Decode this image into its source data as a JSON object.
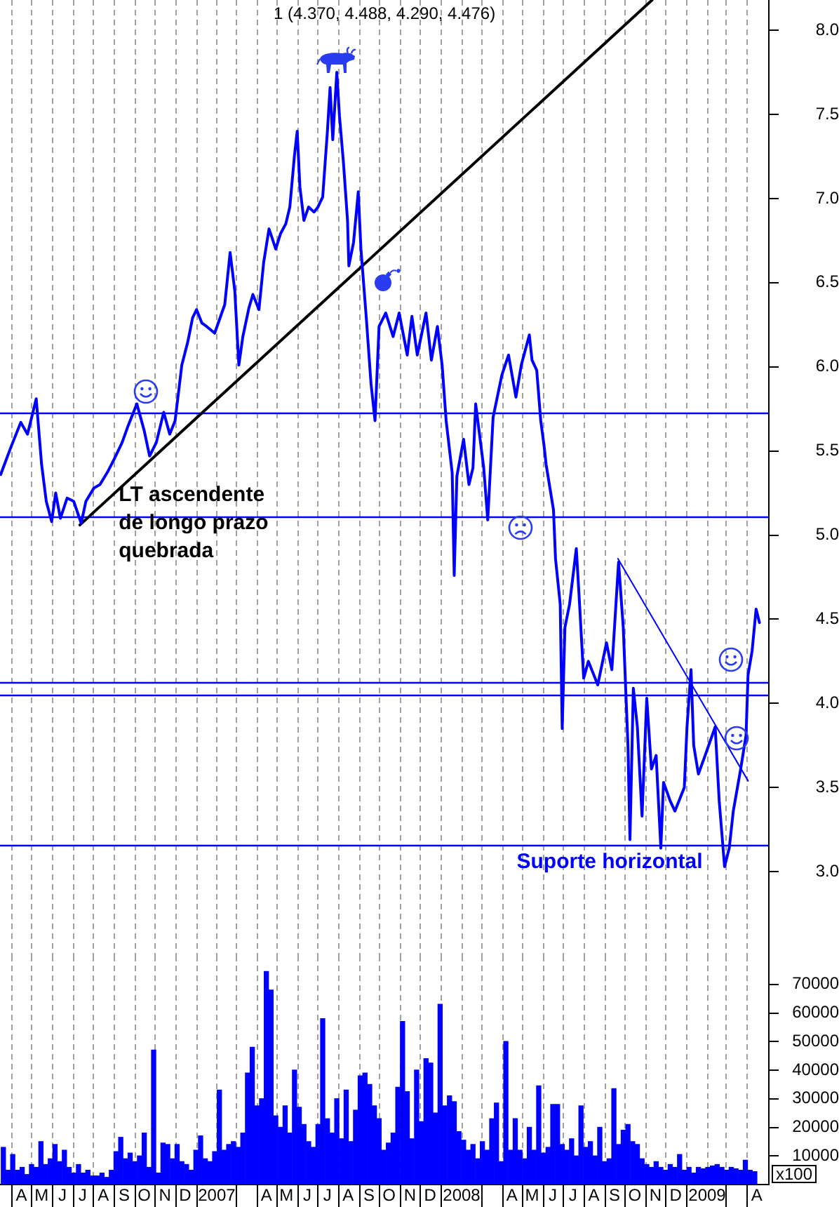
{
  "chart_data": [
    {
      "type": "line",
      "title": "1 (4.370, 4.488, 4.290, 4.476)",
      "series": [
        {
          "color": "#0000ff",
          "x": [
            "2006-03-16",
            "2006-03-31",
            "2006-04-15",
            "2006-04-25",
            "2006-05-08",
            "2006-05-16",
            "2006-05-23",
            "2006-05-31",
            "2006-06-06",
            "2006-06-13",
            "2006-06-23",
            "2006-07-03",
            "2006-07-14",
            "2006-07-21",
            "2006-08-02",
            "2006-08-11",
            "2006-08-23",
            "2006-09-01",
            "2006-09-13",
            "2006-09-22",
            "2006-10-05",
            "2006-10-16",
            "2006-10-24",
            "2006-11-03",
            "2006-11-14",
            "2006-11-23",
            "2006-12-01",
            "2006-12-11",
            "2006-12-20",
            "2006-12-27",
            "2007-01-02",
            "2007-01-10",
            "2007-01-17",
            "2007-01-29",
            "2007-02-13",
            "2007-02-21",
            "2007-02-28",
            "2007-03-06",
            "2007-03-12",
            "2007-03-21",
            "2007-03-27",
            "2007-04-05",
            "2007-04-12",
            "2007-04-20",
            "2007-04-30",
            "2007-05-07",
            "2007-05-15",
            "2007-05-21",
            "2007-05-28",
            "2007-06-01",
            "2007-06-05",
            "2007-06-11",
            "2007-06-18",
            "2007-06-26",
            "2007-07-02",
            "2007-07-09",
            "2007-07-16",
            "2007-07-20",
            "2007-07-24",
            "2007-07-30",
            "2007-08-03",
            "2007-08-09",
            "2007-08-15",
            "2007-08-17",
            "2007-08-24",
            "2007-08-31",
            "2007-09-04",
            "2007-09-12",
            "2007-09-19",
            "2007-09-25",
            "2007-10-01",
            "2007-10-11",
            "2007-10-22",
            "2007-10-31",
            "2007-11-12",
            "2007-11-19",
            "2007-11-27",
            "2007-12-10",
            "2007-12-18",
            "2007-12-27",
            "2008-01-03",
            "2008-01-09",
            "2008-01-18",
            "2008-01-21",
            "2008-01-25",
            "2008-02-04",
            "2008-02-12",
            "2008-02-18",
            "2008-02-22",
            "2008-03-05",
            "2008-03-11",
            "2008-03-19",
            "2008-04-01",
            "2008-04-11",
            "2008-04-22",
            "2008-04-30",
            "2008-05-12",
            "2008-05-16",
            "2008-05-23",
            "2008-05-29",
            "2008-06-03",
            "2008-06-06",
            "2008-06-17",
            "2008-06-20",
            "2008-06-27",
            "2008-06-30",
            "2008-07-04",
            "2008-07-11",
            "2008-07-21",
            "2008-07-25",
            "2008-08-01",
            "2008-08-08",
            "2008-08-22",
            "2008-09-04",
            "2008-09-12",
            "2008-09-22",
            "2008-09-29",
            "2008-10-06",
            "2008-10-09",
            "2008-10-14",
            "2008-10-20",
            "2008-10-27",
            "2008-11-03",
            "2008-11-10",
            "2008-11-17",
            "2008-11-24",
            "2008-11-28",
            "2008-12-08",
            "2008-12-15",
            "2008-12-29",
            "2009-01-02",
            "2009-01-08",
            "2009-01-12",
            "2009-01-19",
            "2009-01-29",
            "2009-02-13",
            "2009-02-19",
            "2009-02-27",
            "2009-03-06",
            "2009-03-12",
            "2009-03-23",
            "2009-03-31",
            "2009-04-03",
            "2009-04-09",
            "2009-04-15",
            "2009-04-20"
          ],
          "values": [
            5.36,
            5.52,
            5.67,
            5.6,
            5.81,
            5.42,
            5.2,
            5.08,
            5.25,
            5.1,
            5.22,
            5.2,
            5.07,
            5.2,
            5.28,
            5.3,
            5.38,
            5.45,
            5.55,
            5.65,
            5.78,
            5.62,
            5.47,
            5.55,
            5.73,
            5.6,
            5.68,
            6.01,
            6.15,
            6.29,
            6.34,
            6.26,
            6.24,
            6.2,
            6.37,
            6.68,
            6.45,
            6.01,
            6.18,
            6.35,
            6.43,
            6.34,
            6.62,
            6.82,
            6.7,
            6.79,
            6.85,
            6.95,
            7.26,
            7.4,
            7.07,
            6.87,
            6.95,
            6.92,
            6.95,
            7.01,
            7.4,
            7.66,
            7.35,
            7.75,
            7.49,
            7.21,
            6.87,
            6.6,
            6.74,
            7.04,
            6.7,
            6.29,
            5.9,
            5.68,
            6.24,
            6.32,
            6.18,
            6.32,
            6.07,
            6.3,
            6.07,
            6.32,
            6.04,
            6.24,
            6.01,
            5.68,
            5.37,
            4.76,
            5.35,
            5.57,
            5.3,
            5.4,
            5.78,
            5.4,
            5.09,
            5.7,
            5.95,
            6.07,
            5.82,
            6.01,
            6.19,
            6.04,
            5.98,
            5.68,
            5.53,
            5.42,
            5.15,
            4.86,
            4.59,
            3.85,
            4.45,
            4.59,
            4.92,
            4.65,
            4.15,
            4.25,
            4.11,
            4.36,
            4.2,
            4.84,
            4.45,
            3.75,
            3.19,
            4.09,
            3.86,
            3.33,
            4.03,
            3.61,
            3.69,
            3.14,
            3.53,
            3.42,
            3.36,
            3.5,
            3.86,
            4.2,
            3.75,
            3.58,
            3.69,
            3.86,
            3.42,
            3.03,
            3.14,
            3.36,
            3.61,
            3.81,
            4.17,
            4.31,
            4.56,
            4.48
          ]
        },
        {
          "type": "line",
          "color": "#000000",
          "x": [
            "2006-07-12",
            "2008-11-11"
          ],
          "values": [
            5.06,
            8.18
          ]
        },
        {
          "type": "line",
          "color": "#0000ff",
          "x": [
            "2008-09-21",
            "2009-04-03"
          ],
          "values": [
            4.86,
            3.54
          ]
        }
      ],
      "xlim": [
        "2006-03-15",
        "2009-05-04"
      ],
      "xticks": [
        {
          "value": "2006-04-01",
          "label": null
        },
        {
          "value": "2006-05-01",
          "label": null
        },
        {
          "value": "2006-06-01",
          "label": null
        },
        {
          "value": "2006-07-01",
          "label": null
        },
        {
          "value": "2006-08-01",
          "label": null
        },
        {
          "value": "2006-09-01",
          "label": null
        },
        {
          "value": "2006-10-01",
          "label": null
        },
        {
          "value": "2006-11-01",
          "label": null
        },
        {
          "value": "2006-12-01",
          "label": null
        },
        {
          "value": "2007-01-01",
          "label": null
        },
        {
          "value": "2007-02-01",
          "label": null
        },
        {
          "value": "2007-03-01",
          "label": null
        },
        {
          "value": "2007-04-01",
          "label": null
        },
        {
          "value": "2007-05-01",
          "label": null
        },
        {
          "value": "2007-06-01",
          "label": null
        },
        {
          "value": "2007-07-01",
          "label": null
        },
        {
          "value": "2007-08-01",
          "label": null
        },
        {
          "value": "2007-09-01",
          "label": null
        },
        {
          "value": "2007-10-01",
          "label": null
        },
        {
          "value": "2007-11-01",
          "label": null
        },
        {
          "value": "2007-12-01",
          "label": null
        },
        {
          "value": "2008-01-01",
          "label": null
        },
        {
          "value": "2008-02-01",
          "label": null
        },
        {
          "value": "2008-03-01",
          "label": null
        },
        {
          "value": "2008-04-01",
          "label": null
        },
        {
          "value": "2008-05-01",
          "label": null
        },
        {
          "value": "2008-06-01",
          "label": null
        },
        {
          "value": "2008-07-01",
          "label": null
        },
        {
          "value": "2008-08-01",
          "label": null
        },
        {
          "value": "2008-09-01",
          "label": null
        },
        {
          "value": "2008-10-01",
          "label": null
        },
        {
          "value": "2008-11-01",
          "label": null
        },
        {
          "value": "2008-12-01",
          "label": null
        },
        {
          "value": "2009-01-01",
          "label": null
        },
        {
          "value": "2009-02-01",
          "label": null
        },
        {
          "value": "2009-03-01",
          "label": null
        },
        {
          "value": "2009-04-01",
          "label": null
        }
      ],
      "ylim": [
        2.5,
        8.18
      ],
      "yticks": [
        {
          "value": 3,
          "label": "3.0"
        },
        {
          "value": 3.5,
          "label": "3.5"
        },
        {
          "value": 4,
          "label": "4.0"
        },
        {
          "value": 4.5,
          "label": "4.5"
        },
        {
          "value": 5,
          "label": "5.0"
        },
        {
          "value": 5.5,
          "label": "5.5"
        },
        {
          "value": 6,
          "label": "6.0"
        },
        {
          "value": 6.5,
          "label": "6.5"
        },
        {
          "value": 7,
          "label": "7.0"
        },
        {
          "value": 7.5,
          "label": "7.5"
        },
        {
          "value": 8,
          "label": "8.0"
        }
      ],
      "ref_lines": [
        {
          "axis": "y",
          "value": 5.73,
          "color": "#0000ff"
        },
        {
          "axis": "y",
          "value": 5.11,
          "color": "#0000ff"
        },
        {
          "axis": "y",
          "value": 4.13,
          "color": "#0000ff"
        },
        {
          "axis": "y",
          "value": 4.05,
          "color": "#0000ff"
        },
        {
          "axis": "y",
          "value": 3.16,
          "label": "Suporte horizontal",
          "color": "#0000ff"
        }
      ],
      "annotations": [
        {
          "text": "LT ascendente de longo prazo quebrada",
          "x": "2006-09-08",
          "y": 5.3
        }
      ],
      "grid": "x",
      "legend": false,
      "marker": "none",
      "tick_labels": "y"
    },
    {
      "type": "bar",
      "color": "#0000ff",
      "ylabel": "x100",
      "x": [
        "2006-03-20",
        "2006-03-27",
        "2006-04-03",
        "2006-04-10",
        "2006-04-17",
        "2006-04-24",
        "2006-05-01",
        "2006-05-08",
        "2006-05-15",
        "2006-05-22",
        "2006-05-29",
        "2006-06-05",
        "2006-06-12",
        "2006-06-19",
        "2006-06-26",
        "2006-07-03",
        "2006-07-10",
        "2006-07-17",
        "2006-07-24",
        "2006-07-31",
        "2006-08-07",
        "2006-08-14",
        "2006-08-21",
        "2006-08-28",
        "2006-09-04",
        "2006-09-11",
        "2006-09-18",
        "2006-09-25",
        "2006-10-02",
        "2006-10-09",
        "2006-10-16",
        "2006-10-23",
        "2006-10-30",
        "2006-11-06",
        "2006-11-13",
        "2006-11-20",
        "2006-11-27",
        "2006-12-04",
        "2006-12-11",
        "2006-12-18",
        "2006-12-25",
        "2007-01-01",
        "2007-01-08",
        "2007-01-15",
        "2007-01-22",
        "2007-01-29",
        "2007-02-05",
        "2007-02-12",
        "2007-02-19",
        "2007-02-26",
        "2007-03-05",
        "2007-03-12",
        "2007-03-19",
        "2007-03-26",
        "2007-04-02",
        "2007-04-09",
        "2007-04-16",
        "2007-04-23",
        "2007-04-30",
        "2007-05-07",
        "2007-05-14",
        "2007-05-21",
        "2007-05-28",
        "2007-06-04",
        "2007-06-11",
        "2007-06-18",
        "2007-06-25",
        "2007-07-02",
        "2007-07-09",
        "2007-07-16",
        "2007-07-23",
        "2007-07-30",
        "2007-08-06",
        "2007-08-13",
        "2007-08-20",
        "2007-08-27",
        "2007-09-03",
        "2007-09-10",
        "2007-09-17",
        "2007-09-24",
        "2007-10-01",
        "2007-10-08",
        "2007-10-15",
        "2007-10-22",
        "2007-10-29",
        "2007-11-05",
        "2007-11-12",
        "2007-11-19",
        "2007-11-26",
        "2007-12-03",
        "2007-12-10",
        "2007-12-17",
        "2007-12-24",
        "2007-12-31",
        "2008-01-07",
        "2008-01-14",
        "2008-01-21",
        "2008-01-28",
        "2008-02-04",
        "2008-02-11",
        "2008-02-18",
        "2008-02-25",
        "2008-03-03",
        "2008-03-10",
        "2008-03-17",
        "2008-03-24",
        "2008-03-31",
        "2008-04-07",
        "2008-04-14",
        "2008-04-21",
        "2008-04-28",
        "2008-05-05",
        "2008-05-12",
        "2008-05-19",
        "2008-05-26",
        "2008-06-02",
        "2008-06-09",
        "2008-06-16",
        "2008-06-23",
        "2008-06-30",
        "2008-07-07",
        "2008-07-14",
        "2008-07-21",
        "2008-07-28",
        "2008-08-04",
        "2008-08-11",
        "2008-08-18",
        "2008-08-25",
        "2008-09-01",
        "2008-09-08",
        "2008-09-15",
        "2008-09-22",
        "2008-09-29",
        "2008-10-06",
        "2008-10-13",
        "2008-10-20",
        "2008-10-27",
        "2008-11-03",
        "2008-11-10",
        "2008-11-17",
        "2008-11-24",
        "2008-12-01",
        "2008-12-08",
        "2008-12-15",
        "2008-12-22",
        "2008-12-29",
        "2009-01-05",
        "2009-01-12",
        "2009-01-19",
        "2009-01-26",
        "2009-02-02",
        "2009-02-09",
        "2009-02-16",
        "2009-02-23",
        "2009-03-02",
        "2009-03-09",
        "2009-03-16",
        "2009-03-23",
        "2009-03-30",
        "2009-04-06",
        "2009-04-13"
      ],
      "values": [
        13000,
        5000,
        10500,
        5000,
        6000,
        3500,
        7000,
        6000,
        15000,
        7000,
        9000,
        14000,
        8000,
        12000,
        6000,
        4000,
        7000,
        4000,
        5000,
        3000,
        3000,
        4000,
        2500,
        5000,
        11500,
        16500,
        9000,
        11000,
        8000,
        10000,
        18000,
        6000,
        47000,
        4000,
        14500,
        14000,
        9000,
        14000,
        8000,
        7000,
        5000,
        12000,
        17000,
        9000,
        8000,
        11500,
        33000,
        12000,
        14000,
        15000,
        13000,
        18000,
        39000,
        48000,
        27500,
        30000,
        74500,
        68000,
        24000,
        20000,
        27500,
        18000,
        40000,
        27000,
        21000,
        15000,
        13000,
        21000,
        58000,
        23000,
        18000,
        30000,
        16000,
        33000,
        15000,
        26000,
        38000,
        39000,
        35000,
        27500,
        23000,
        12000,
        14500,
        18000,
        34000,
        57000,
        32500,
        16000,
        40000,
        22000,
        44000,
        42500,
        25000,
        63000,
        27500,
        31000,
        29000,
        18500,
        15500,
        12000,
        14000,
        9000,
        15000,
        12000,
        23000,
        28500,
        8000,
        50000,
        12000,
        23000,
        12000,
        9000,
        20000,
        12000,
        34500,
        11000,
        13000,
        28000,
        28000,
        14000,
        12000,
        16000,
        10000,
        27500,
        13000,
        15000,
        10000,
        20000,
        8000,
        9000,
        33500,
        14000,
        19000,
        21000,
        15000,
        14000,
        9000,
        7000,
        6000,
        8000,
        6000,
        5000,
        7000,
        6000,
        10500,
        5000,
        6000,
        4000,
        6000,
        5500,
        6000,
        6500,
        7000,
        6000,
        5000,
        6000,
        5500,
        5000,
        8500,
        5000,
        4500
      ],
      "xlim": [
        "2006-03-15",
        "2009-05-04"
      ],
      "xticks": [
        {
          "value": "2006-04-01",
          "label": null
        },
        {
          "value": "2006-04-16",
          "label": "A"
        },
        {
          "value": "2006-05-01",
          "label": null
        },
        {
          "value": "2006-05-16",
          "label": "M"
        },
        {
          "value": "2006-06-01",
          "label": null
        },
        {
          "value": "2006-06-16",
          "label": "J"
        },
        {
          "value": "2006-07-01",
          "label": null
        },
        {
          "value": "2006-07-16",
          "label": "J"
        },
        {
          "value": "2006-08-01",
          "label": null
        },
        {
          "value": "2006-08-16",
          "label": "A"
        },
        {
          "value": "2006-09-01",
          "label": null
        },
        {
          "value": "2006-09-16",
          "label": "S"
        },
        {
          "value": "2006-10-01",
          "label": null
        },
        {
          "value": "2006-10-16",
          "label": "O"
        },
        {
          "value": "2006-11-01",
          "label": null
        },
        {
          "value": "2006-11-16",
          "label": "N"
        },
        {
          "value": "2006-12-01",
          "label": null
        },
        {
          "value": "2006-12-16",
          "label": "D"
        },
        {
          "value": "2007-01-01",
          "label": null
        },
        {
          "value": "2007-02-01",
          "label": "2007"
        },
        {
          "value": "2007-03-01",
          "label": null
        },
        {
          "value": "2007-04-01",
          "label": null
        },
        {
          "value": "2007-04-16",
          "label": "A"
        },
        {
          "value": "2007-05-01",
          "label": null
        },
        {
          "value": "2007-05-16",
          "label": "M"
        },
        {
          "value": "2007-06-01",
          "label": null
        },
        {
          "value": "2007-06-16",
          "label": "J"
        },
        {
          "value": "2007-07-01",
          "label": null
        },
        {
          "value": "2007-07-16",
          "label": "J"
        },
        {
          "value": "2007-08-01",
          "label": null
        },
        {
          "value": "2007-08-16",
          "label": "A"
        },
        {
          "value": "2007-09-01",
          "label": null
        },
        {
          "value": "2007-09-16",
          "label": "S"
        },
        {
          "value": "2007-10-01",
          "label": null
        },
        {
          "value": "2007-10-16",
          "label": "O"
        },
        {
          "value": "2007-11-01",
          "label": null
        },
        {
          "value": "2007-11-16",
          "label": "N"
        },
        {
          "value": "2007-12-01",
          "label": null
        },
        {
          "value": "2007-12-16",
          "label": "D"
        },
        {
          "value": "2008-01-01",
          "label": null
        },
        {
          "value": "2008-02-01",
          "label": "2008"
        },
        {
          "value": "2008-03-01",
          "label": null
        },
        {
          "value": "2008-04-01",
          "label": null
        },
        {
          "value": "2008-04-16",
          "label": "A"
        },
        {
          "value": "2008-05-01",
          "label": null
        },
        {
          "value": "2008-05-16",
          "label": "M"
        },
        {
          "value": "2008-06-01",
          "label": null
        },
        {
          "value": "2008-06-16",
          "label": "J"
        },
        {
          "value": "2008-07-01",
          "label": null
        },
        {
          "value": "2008-07-16",
          "label": "J"
        },
        {
          "value": "2008-08-01",
          "label": null
        },
        {
          "value": "2008-08-16",
          "label": "A"
        },
        {
          "value": "2008-09-01",
          "label": null
        },
        {
          "value": "2008-09-16",
          "label": "S"
        },
        {
          "value": "2008-10-01",
          "label": null
        },
        {
          "value": "2008-10-16",
          "label": "O"
        },
        {
          "value": "2008-11-01",
          "label": null
        },
        {
          "value": "2008-11-16",
          "label": "N"
        },
        {
          "value": "2008-12-01",
          "label": null
        },
        {
          "value": "2008-12-16",
          "label": "D"
        },
        {
          "value": "2009-01-01",
          "label": null
        },
        {
          "value": "2009-02-01",
          "label": "2009"
        },
        {
          "value": "2009-03-01",
          "label": null
        },
        {
          "value": "2009-04-01",
          "label": null
        },
        {
          "value": "2009-04-16",
          "label": "A"
        }
      ],
      "ylim": [
        0,
        80000
      ],
      "yticks": [
        10000,
        20000,
        30000,
        40000,
        50000,
        60000,
        70000
      ],
      "grid": "x",
      "legend": false
    }
  ]
}
